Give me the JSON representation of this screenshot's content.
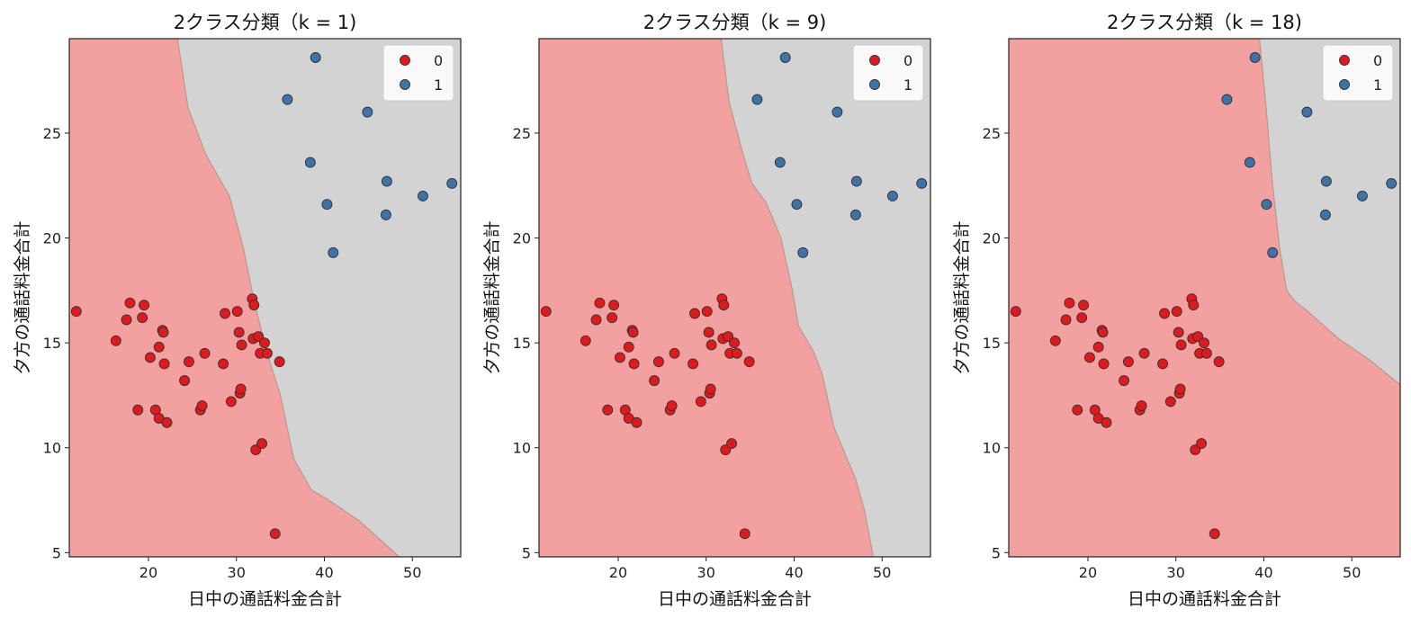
{
  "chart_data": [
    {
      "type": "scatter",
      "title": "2クラス分類（k = 1)",
      "xlabel": "日中の通話料金合計",
      "ylabel": "夕方の通話料金合計",
      "xlim": [
        11,
        55.5
      ],
      "ylim": [
        4.8,
        29.5
      ],
      "xticks": [
        20,
        30,
        40,
        50
      ],
      "yticks": [
        5,
        10,
        15,
        20,
        25
      ],
      "grid": false,
      "legend_position": "top-right",
      "legend_entries": [
        "0",
        "1"
      ],
      "decision_boundary": [
        [
          23.3,
          29.5
        ],
        [
          24.5,
          26.2
        ],
        [
          26.5,
          24.0
        ],
        [
          29.2,
          22.0
        ],
        [
          30.8,
          19.5
        ],
        [
          32.0,
          17.0
        ],
        [
          33.5,
          14.5
        ],
        [
          35.0,
          12.5
        ],
        [
          36.5,
          9.5
        ],
        [
          38.5,
          8.0
        ],
        [
          40.5,
          7.5
        ],
        [
          44.0,
          6.5
        ],
        [
          48.5,
          4.8
        ]
      ],
      "regions": {
        "0": "#f2a0a0",
        "1": "#d3d3d3"
      }
    },
    {
      "type": "scatter",
      "title": "2クラス分類（k = 9)",
      "xlabel": "日中の通話料金合計",
      "ylabel": "夕方の通話料金合計",
      "xlim": [
        11,
        55.5
      ],
      "ylim": [
        4.8,
        29.5
      ],
      "xticks": [
        20,
        30,
        40,
        50
      ],
      "yticks": [
        5,
        10,
        15,
        20,
        25
      ],
      "grid": false,
      "legend_position": "top-right",
      "legend_entries": [
        "0",
        "1"
      ],
      "decision_boundary": [
        [
          31.7,
          29.5
        ],
        [
          32.6,
          26.5
        ],
        [
          34.2,
          24.0
        ],
        [
          35.2,
          22.6
        ],
        [
          36.8,
          21.7
        ],
        [
          38.5,
          20.0
        ],
        [
          39.8,
          17.5
        ],
        [
          40.5,
          15.8
        ],
        [
          42.2,
          14.6
        ],
        [
          43.2,
          13.5
        ],
        [
          44.5,
          11.0
        ],
        [
          47.0,
          8.5
        ],
        [
          48.0,
          7.0
        ],
        [
          49.0,
          4.8
        ]
      ],
      "regions": {
        "0": "#f2a0a0",
        "1": "#d3d3d3"
      }
    },
    {
      "type": "scatter",
      "title": "2クラス分類（k = 18)",
      "xlabel": "日中の通話料金合計",
      "ylabel": "夕方の通話料金合計",
      "xlim": [
        11,
        55.5
      ],
      "ylim": [
        4.8,
        29.5
      ],
      "xticks": [
        20,
        30,
        40,
        50
      ],
      "yticks": [
        5,
        10,
        15,
        20,
        25
      ],
      "grid": false,
      "legend_position": "top-right",
      "legend_entries": [
        "0",
        "1"
      ],
      "decision_boundary": [
        [
          39.5,
          29.5
        ],
        [
          40.2,
          26.5
        ],
        [
          41.0,
          22.5
        ],
        [
          41.8,
          19.5
        ],
        [
          42.6,
          17.5
        ],
        [
          43.5,
          17.0
        ],
        [
          45.0,
          16.5
        ],
        [
          48.5,
          15.2
        ],
        [
          52.0,
          14.2
        ],
        [
          55.5,
          13.0
        ]
      ],
      "regions": {
        "0": "#f2a0a0",
        "1": "#d3d3d3"
      }
    }
  ],
  "points": {
    "class0": [
      [
        11.8,
        16.5
      ],
      [
        16.3,
        15.1
      ],
      [
        17.5,
        16.1
      ],
      [
        17.9,
        16.9
      ],
      [
        18.8,
        11.8
      ],
      [
        19.3,
        16.2
      ],
      [
        19.5,
        16.8
      ],
      [
        20.2,
        14.3
      ],
      [
        20.8,
        11.8
      ],
      [
        21.2,
        14.8
      ],
      [
        21.2,
        11.4
      ],
      [
        21.6,
        15.6
      ],
      [
        21.7,
        15.5
      ],
      [
        21.8,
        14.0
      ],
      [
        22.1,
        11.2
      ],
      [
        24.1,
        13.2
      ],
      [
        24.6,
        14.1
      ],
      [
        25.9,
        11.8
      ],
      [
        26.1,
        12.0
      ],
      [
        26.4,
        14.5
      ],
      [
        28.5,
        14.0
      ],
      [
        28.7,
        16.4
      ],
      [
        29.4,
        12.2
      ],
      [
        30.1,
        16.5
      ],
      [
        30.3,
        15.5
      ],
      [
        30.4,
        12.6
      ],
      [
        30.5,
        12.8
      ],
      [
        30.6,
        14.9
      ],
      [
        31.8,
        17.1
      ],
      [
        31.9,
        15.2
      ],
      [
        32.0,
        16.8
      ],
      [
        32.2,
        9.9
      ],
      [
        32.5,
        15.3
      ],
      [
        32.7,
        14.5
      ],
      [
        32.9,
        10.2
      ],
      [
        33.2,
        15.0
      ],
      [
        33.5,
        14.5
      ],
      [
        34.4,
        5.9
      ],
      [
        34.9,
        14.1
      ]
    ],
    "class1": [
      [
        35.8,
        26.6
      ],
      [
        39.0,
        28.6
      ],
      [
        38.4,
        23.6
      ],
      [
        40.3,
        21.6
      ],
      [
        41.0,
        19.3
      ],
      [
        44.9,
        26.0
      ],
      [
        47.0,
        21.1
      ],
      [
        47.1,
        22.7
      ],
      [
        51.2,
        22.0
      ],
      [
        54.5,
        22.6
      ]
    ]
  },
  "colors": {
    "class0_fill": "#e0191c",
    "class1_fill": "#3c73a8",
    "marker_edge": "#333333",
    "region0": "#f2a0a0",
    "region1": "#d3d3d3",
    "boundary": "#b89a8a"
  }
}
